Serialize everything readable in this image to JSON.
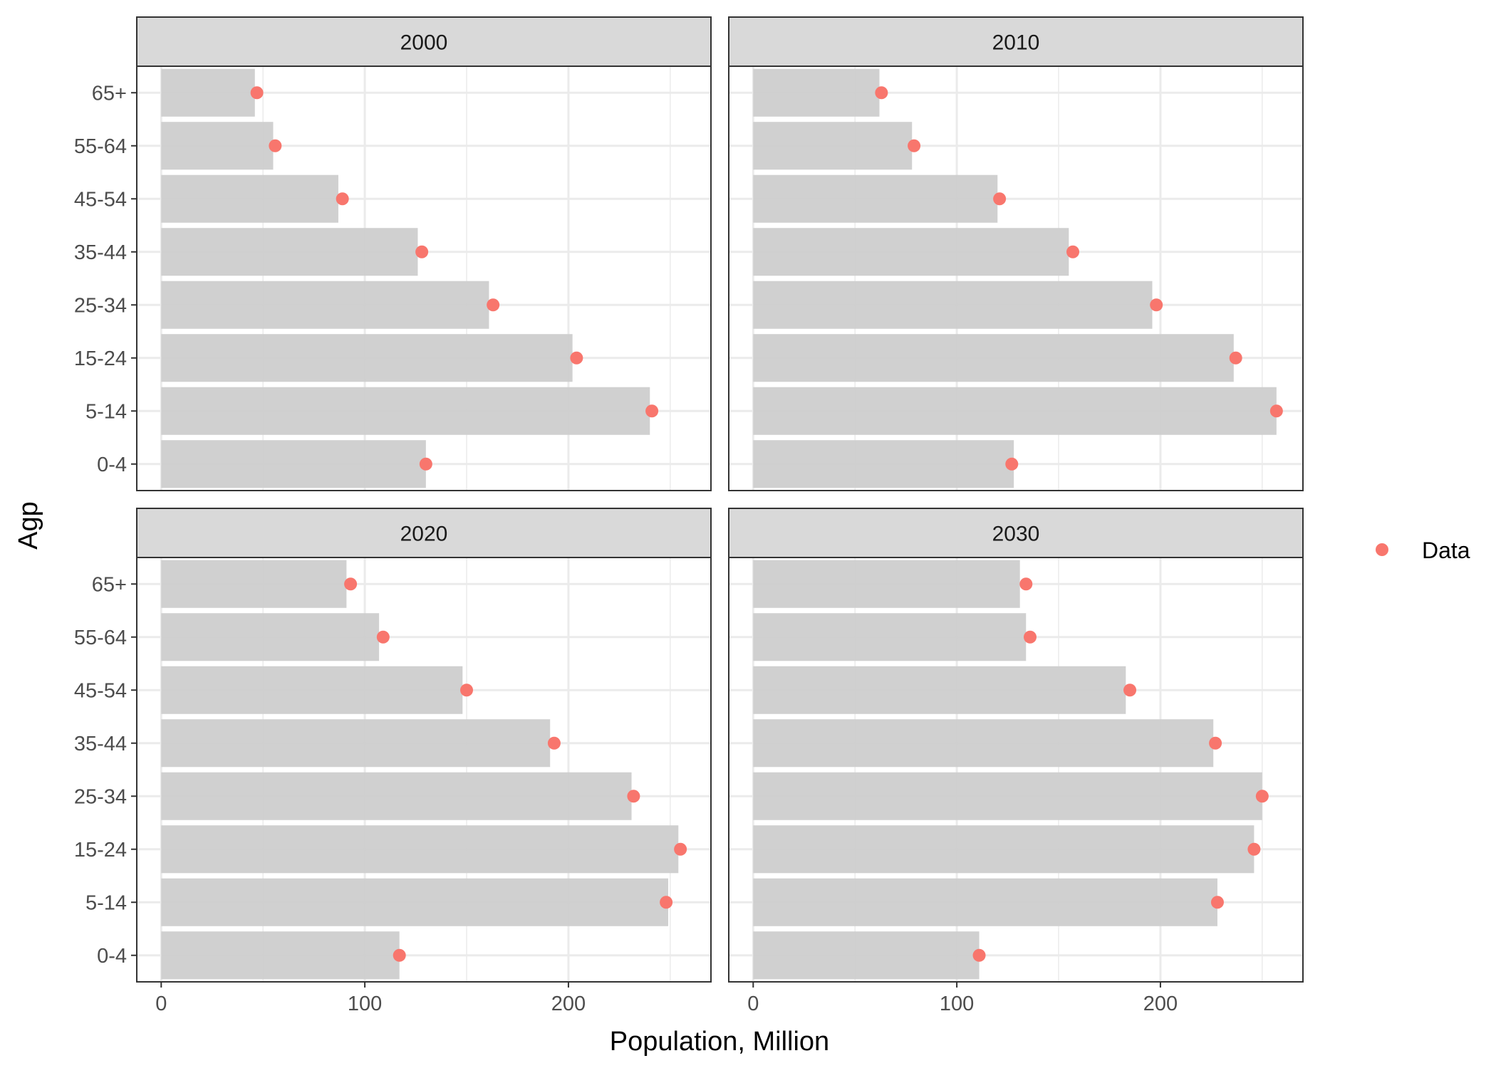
{
  "chart_data": {
    "type": "bar",
    "categories": [
      "0-4",
      "5-14",
      "15-24",
      "25-34",
      "35-44",
      "45-54",
      "55-64",
      "65+"
    ],
    "xlabel": "Population, Million",
    "ylabel": "Agp",
    "xlim": [
      -12,
      270
    ],
    "x_ticks": [
      0,
      100,
      200
    ],
    "grid": true,
    "legend": {
      "position": "right",
      "entries": [
        {
          "label": "Data",
          "color": "#F8766D"
        }
      ]
    },
    "colors": {
      "bar": "#cccccc",
      "point": "#F8766D",
      "strip": "#d9d9d9",
      "grid": "#ebebeb"
    },
    "panels": [
      {
        "title": "2000",
        "bars": [
          130,
          240,
          202,
          161,
          126,
          87,
          55,
          46
        ],
        "points": [
          130,
          241,
          204,
          163,
          128,
          89,
          56,
          47
        ]
      },
      {
        "title": "2010",
        "bars": [
          128,
          257,
          236,
          196,
          155,
          120,
          78,
          62
        ],
        "points": [
          127,
          257,
          237,
          198,
          157,
          121,
          79,
          63
        ]
      },
      {
        "title": "2020",
        "bars": [
          117,
          249,
          254,
          231,
          191,
          148,
          107,
          91
        ],
        "points": [
          117,
          248,
          255,
          232,
          193,
          150,
          109,
          93
        ]
      },
      {
        "title": "2030",
        "bars": [
          111,
          228,
          246,
          250,
          226,
          183,
          134,
          131
        ],
        "points": [
          111,
          228,
          246,
          250,
          227,
          185,
          136,
          134
        ]
      }
    ]
  }
}
